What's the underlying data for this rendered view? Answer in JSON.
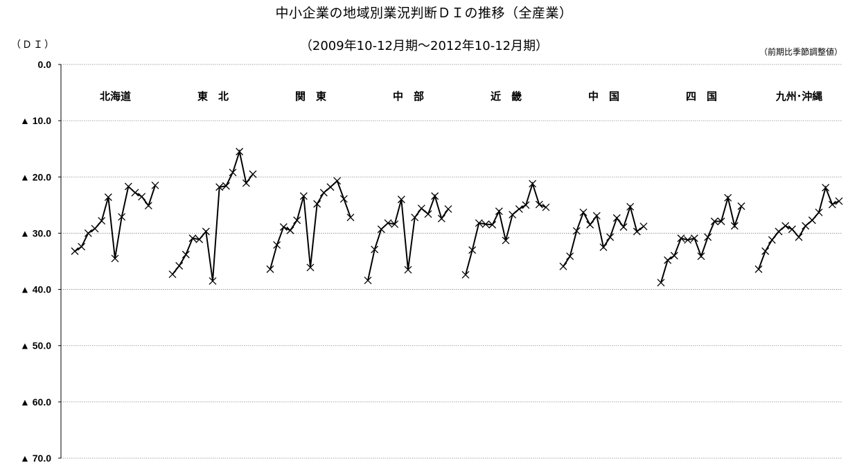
{
  "title": "中小企業の地域別業況判断ＤＩの推移（全産業）",
  "subtitle": "（2009年10-12月期～2012年10-12月期）",
  "y_unit": "（ＤＩ）",
  "adjustment_note": "（前期比季節調整値）",
  "chart_data": {
    "type": "line",
    "ylim": [
      0,
      70
    ],
    "y_inverted": true,
    "y_ticks": [
      0,
      10,
      20,
      30,
      40,
      50,
      60,
      70
    ],
    "y_tick_labels": [
      "0.0",
      "▲ 10.0",
      "▲ 20.0",
      "▲ 30.0",
      "▲ 40.0",
      "▲ 50.0",
      "▲ 60.0",
      "▲ 70.0"
    ],
    "grid": true,
    "marker": "x",
    "series": [
      {
        "name": "北海道",
        "values": [
          -33.2,
          -32.4,
          -30.0,
          -29.2,
          -27.8,
          -23.6,
          -34.5,
          -27.1,
          -21.7,
          -22.8,
          -23.5,
          -25.1,
          -21.5
        ]
      },
      {
        "name": "東　北",
        "values": [
          -37.3,
          -35.8,
          -33.8,
          -30.9,
          -31.1,
          -29.7,
          -38.5,
          -21.8,
          -21.6,
          -19.2,
          -15.5,
          -21.1,
          -19.5
        ]
      },
      {
        "name": "関　東",
        "values": [
          -36.4,
          -32.1,
          -28.9,
          -29.5,
          -27.7,
          -23.4,
          -36.1,
          -24.8,
          -22.8,
          -21.8,
          -20.7,
          -23.9,
          -27.2
        ]
      },
      {
        "name": "中　部",
        "values": [
          -38.4,
          -32.9,
          -29.3,
          -28.2,
          -28.4,
          -24.0,
          -36.5,
          -27.2,
          -25.6,
          -26.6,
          -23.4,
          -27.4,
          -25.7
        ]
      },
      {
        "name": "近　畿",
        "values": [
          -37.4,
          -33.0,
          -28.2,
          -28.4,
          -28.5,
          -26.1,
          -31.3,
          -26.7,
          -25.7,
          -25.0,
          -21.2,
          -24.9,
          -25.4
        ]
      },
      {
        "name": "中　国",
        "values": [
          -35.9,
          -34.1,
          -29.6,
          -26.3,
          -28.5,
          -26.9,
          -32.5,
          -30.7,
          -27.3,
          -28.9,
          -25.3,
          -29.7,
          -28.8
        ]
      },
      {
        "name": "四　国",
        "values": [
          -38.8,
          -34.8,
          -34.0,
          -30.9,
          -31.2,
          -30.9,
          -34.1,
          -30.7,
          -27.9,
          -27.9,
          -23.7,
          -28.7,
          -25.2
        ]
      },
      {
        "name": "九州･沖縄",
        "values": [
          -36.4,
          -33.2,
          -31.2,
          -29.7,
          -28.7,
          -29.3,
          -30.7,
          -28.7,
          -27.7,
          -26.3,
          -21.9,
          -24.9,
          -24.3
        ]
      }
    ]
  }
}
